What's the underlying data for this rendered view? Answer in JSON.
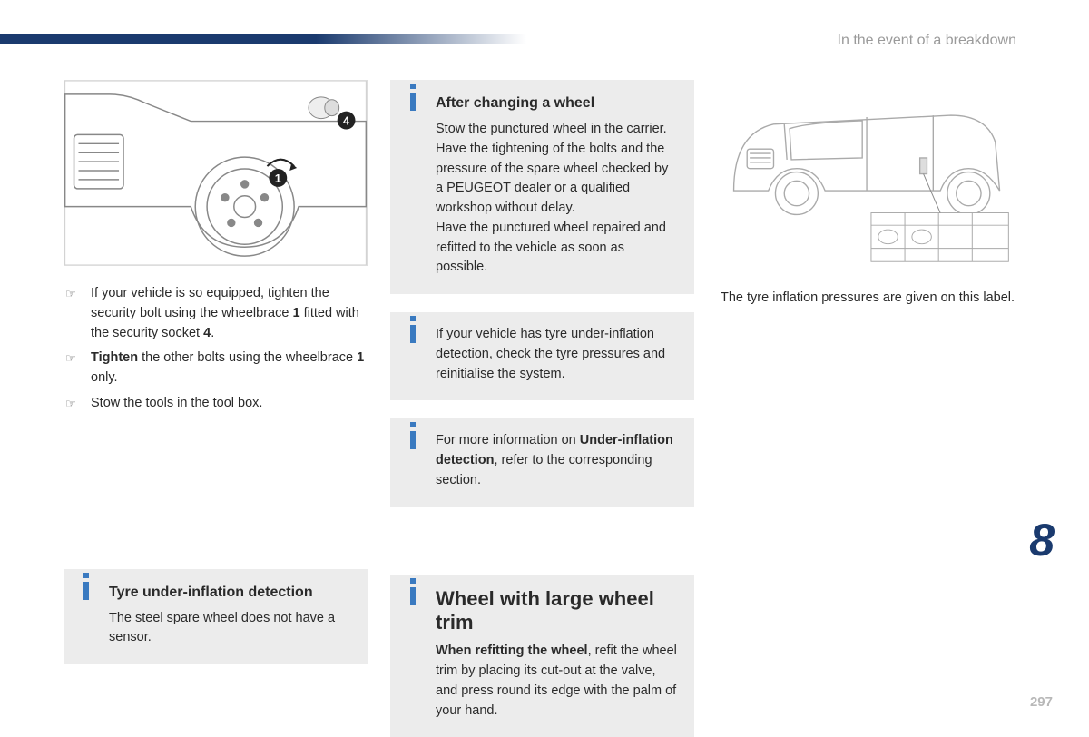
{
  "header": {
    "section_label": "In the event of a breakdown"
  },
  "col1": {
    "bullets": [
      "If your vehicle is so equipped, tighten the security bolt using the wheelbrace <b>1</b> fitted with the security socket <b>4</b>.",
      "<b>Tighten</b> the other bolts using the wheelbrace <b>1</b> only.",
      "Stow the tools in the tool box."
    ],
    "info_tyre": {
      "title": "Tyre under-inflation detection",
      "body": "The steel spare wheel does not have a sensor."
    }
  },
  "col2": {
    "info_after": {
      "title": "After changing a wheel",
      "body": "Stow the punctured wheel in the carrier. Have the tightening of the bolts and the pressure of the spare wheel checked by a PEUGEOT dealer or a qualified workshop without delay.<br>Have the punctured wheel repaired and refitted to the vehicle as soon as possible."
    },
    "info_check": {
      "body": "If your vehicle has tyre under-inflation detection, check the tyre pressures and reinitialise the system."
    },
    "info_more": {
      "body": "For more information on <b>Under-inflation detection</b>, refer to the corresponding section."
    },
    "info_trim": {
      "title": "Wheel with large wheel trim",
      "body": "<b>When refitting the wheel</b>, refit the wheel trim by placing its cut-out at the valve, and press round its edge with the palm of your hand."
    }
  },
  "col3": {
    "caption": "The tyre inflation pressures are given on this label."
  },
  "chapter": "8",
  "page": "297",
  "colors": {
    "header_bar": "#1a3a6e",
    "header_text": "#9a9a9a",
    "info_bg": "#ececec",
    "info_icon": "#3a7ac0",
    "body_text": "#2a2a2a",
    "page_num": "#b8b8b8"
  }
}
